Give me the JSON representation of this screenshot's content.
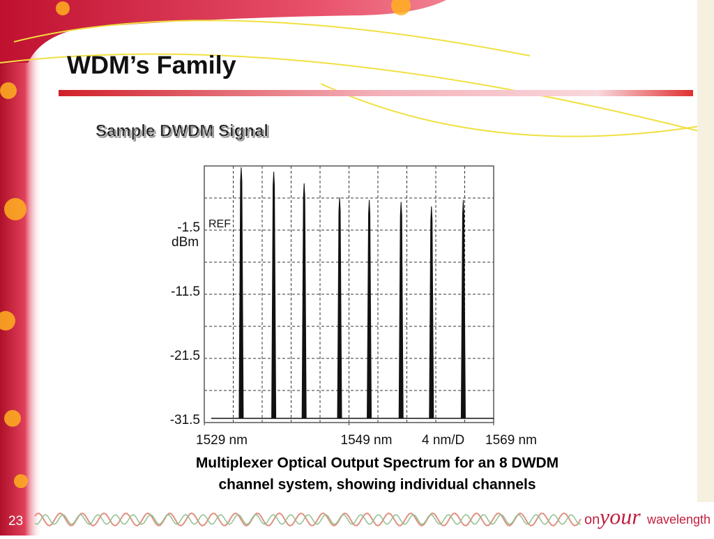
{
  "slide": {
    "title": "WDM’s Family",
    "subtitle": "Sample DWDM Signal",
    "caption": [
      "Multiplexer Optical Output Spectrum for an 8 DWDM",
      "channel system, showing individual channels"
    ],
    "page_number": "23",
    "brand": [
      "on",
      "your",
      "wavelength"
    ]
  },
  "chart_data": {
    "type": "spectrum",
    "y_unit": "dBm",
    "annotations": [
      "REF",
      "4 nm/D"
    ],
    "x": [
      1534.1,
      1538.6,
      1542.8,
      1547.7,
      1551.8,
      1556.2,
      1560.4,
      1564.8
    ],
    "values": [
      8.3,
      7.6,
      5.8,
      3.6,
      3.2,
      2.9,
      2.2,
      3.2
    ],
    "color": "#111111",
    "xlim": [
      1529,
      1569
    ],
    "xticks": [
      {
        "value": 1529,
        "label": "1529 nm"
      },
      {
        "value": 1549,
        "label": "1549 nm"
      },
      {
        "value": 1569,
        "label": "1569 nm"
      }
    ],
    "ylim": [
      -31.5,
      8.5
    ],
    "yticks": [
      -31.5,
      -21.5,
      -11.5,
      -1.5
    ],
    "grid": true
  }
}
